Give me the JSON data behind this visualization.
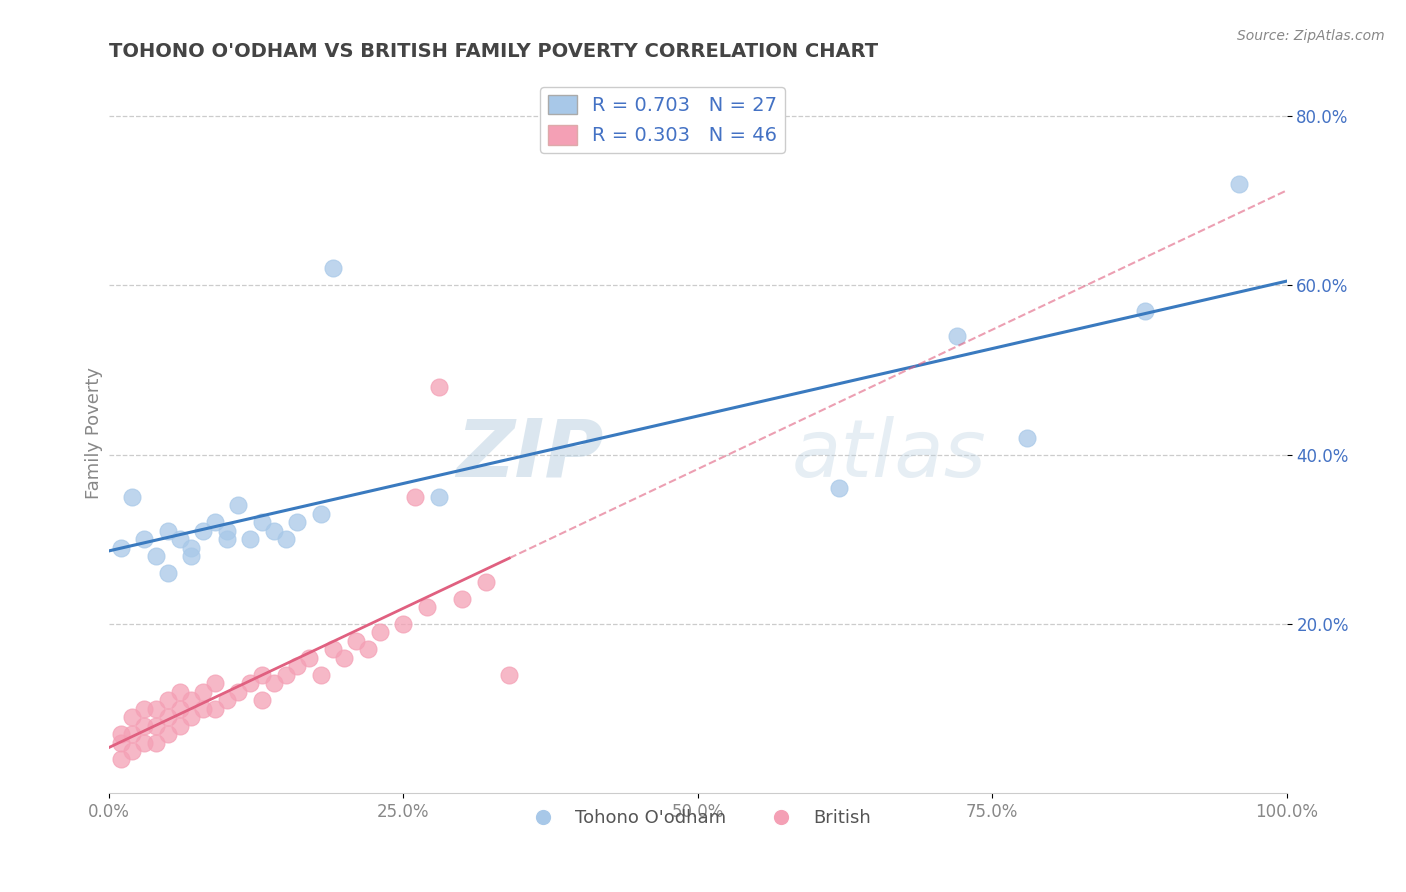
{
  "title": "TOHONO O'ODHAM VS BRITISH FAMILY POVERTY CORRELATION CHART",
  "source_text": "Source: ZipAtlas.com",
  "ylabel": "Family Poverty",
  "x_min": 0.0,
  "x_max": 1.0,
  "y_min": 0.0,
  "y_max": 0.85,
  "x_ticks": [
    0.0,
    0.25,
    0.5,
    0.75,
    1.0
  ],
  "x_tick_labels": [
    "0.0%",
    "25.0%",
    "50.0%",
    "75.0%",
    "100.0%"
  ],
  "y_ticks": [
    0.2,
    0.4,
    0.6,
    0.8
  ],
  "y_tick_labels": [
    "20.0%",
    "40.0%",
    "60.0%",
    "80.0%"
  ],
  "legend_label1": "Tohono O'odham",
  "legend_label2": "British",
  "r1": 0.703,
  "n1": 27,
  "r2": 0.303,
  "n2": 46,
  "color_blue": "#a8c8e8",
  "color_pink": "#f4a0b5",
  "line_color_blue": "#3a7abf",
  "line_color_pink": "#e06080",
  "watermark_zip": "ZIP",
  "watermark_atlas": "atlas",
  "blue_x": [
    0.01,
    0.02,
    0.03,
    0.04,
    0.05,
    0.05,
    0.06,
    0.07,
    0.07,
    0.08,
    0.09,
    0.1,
    0.1,
    0.11,
    0.12,
    0.13,
    0.14,
    0.15,
    0.16,
    0.18,
    0.19,
    0.28,
    0.62,
    0.72,
    0.78,
    0.88,
    0.96
  ],
  "blue_y": [
    0.29,
    0.35,
    0.3,
    0.28,
    0.31,
    0.26,
    0.3,
    0.29,
    0.28,
    0.31,
    0.32,
    0.31,
    0.3,
    0.34,
    0.3,
    0.32,
    0.31,
    0.3,
    0.32,
    0.33,
    0.62,
    0.35,
    0.36,
    0.54,
    0.42,
    0.57,
    0.72
  ],
  "pink_x": [
    0.01,
    0.01,
    0.01,
    0.02,
    0.02,
    0.02,
    0.03,
    0.03,
    0.03,
    0.04,
    0.04,
    0.04,
    0.05,
    0.05,
    0.05,
    0.06,
    0.06,
    0.06,
    0.07,
    0.07,
    0.08,
    0.08,
    0.09,
    0.09,
    0.1,
    0.11,
    0.12,
    0.13,
    0.13,
    0.14,
    0.15,
    0.16,
    0.17,
    0.18,
    0.19,
    0.2,
    0.21,
    0.22,
    0.23,
    0.25,
    0.26,
    0.27,
    0.28,
    0.3,
    0.32,
    0.34
  ],
  "pink_y": [
    0.04,
    0.06,
    0.07,
    0.05,
    0.07,
    0.09,
    0.06,
    0.08,
    0.1,
    0.06,
    0.08,
    0.1,
    0.07,
    0.09,
    0.11,
    0.08,
    0.1,
    0.12,
    0.09,
    0.11,
    0.1,
    0.12,
    0.1,
    0.13,
    0.11,
    0.12,
    0.13,
    0.11,
    0.14,
    0.13,
    0.14,
    0.15,
    0.16,
    0.14,
    0.17,
    0.16,
    0.18,
    0.17,
    0.19,
    0.2,
    0.35,
    0.22,
    0.48,
    0.23,
    0.25,
    0.14
  ],
  "background_color": "#ffffff",
  "grid_color": "#cccccc",
  "title_color": "#444444",
  "axis_label_color": "#888888",
  "tick_color": "#888888",
  "y_tick_color": "#4472c4",
  "legend_text_color": "#4472c4"
}
